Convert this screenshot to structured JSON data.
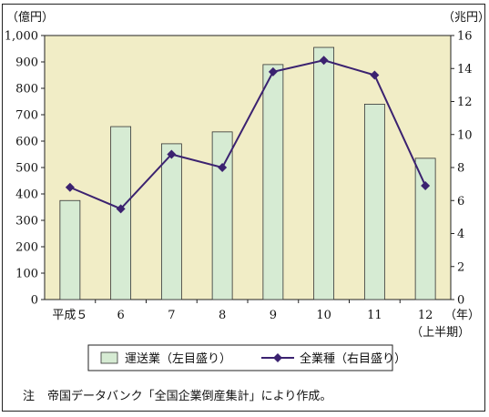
{
  "chart_data": {
    "type": "bar+line",
    "categories": [
      "平成５",
      "6",
      "7",
      "8",
      "9",
      "10",
      "11",
      "12"
    ],
    "x_unit": "（年）",
    "x_sub_label": "（上半期）",
    "left_axis": {
      "unit": "（億円）",
      "ylim": [
        0,
        1000
      ],
      "ticks": [
        "0",
        "100",
        "200",
        "300",
        "400",
        "500",
        "600",
        "700",
        "800",
        "900",
        "1,000"
      ]
    },
    "right_axis": {
      "unit": "（兆円）",
      "ylim": [
        0,
        16
      ],
      "ticks": [
        "0",
        "2",
        "4",
        "6",
        "8",
        "10",
        "12",
        "14",
        "16"
      ]
    },
    "series": [
      {
        "name": "運送業（左目盛り）",
        "kind": "bar",
        "axis": "left",
        "values": [
          375,
          655,
          590,
          635,
          890,
          955,
          740,
          535
        ],
        "color": "#d6ebd3"
      },
      {
        "name": "全業種（右目盛り）",
        "kind": "line",
        "axis": "right",
        "values": [
          6.8,
          5.5,
          8.8,
          8.0,
          13.8,
          14.5,
          13.6,
          6.9
        ],
        "color": "#3b2270"
      }
    ],
    "plot_background": "#f1edc6",
    "legend_position": "bottom"
  },
  "note": {
    "mark": "注",
    "text": "帝国データバンク「全国企業倒産集計」により作成。"
  }
}
